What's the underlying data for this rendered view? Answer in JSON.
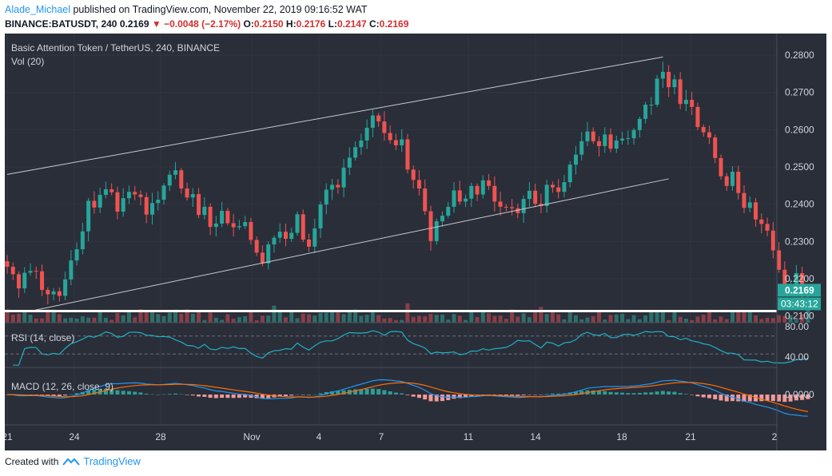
{
  "header": {
    "author": "Alade_Michael",
    "published": "published on TradingView.com, November 22, 2019 09:16:52 WAT",
    "symbol": "BINANCE:BATUSDT, 240",
    "last": "0.2169",
    "change_arrow": "▼",
    "change": "−0.0048 (−2.17%)",
    "o_label": "O:",
    "o": "0.2150",
    "h_label": "H:",
    "h": "0.2176",
    "l_label": "L:",
    "l": "0.2147",
    "c_label": "C:",
    "c": "0.2169"
  },
  "footer": {
    "created": "Created with",
    "brand": "TradingView"
  },
  "colors": {
    "background": "#2a2e39",
    "up": "#26a69a",
    "down": "#ef5350",
    "rsi": "#1fb1c4",
    "macd": "#2196f3",
    "signal": "#ff6d00"
  },
  "chart_data": {
    "type": "candlestick",
    "title": "Basic Attention Token / TetherUS, 240, BINANCE",
    "volume_label": "Vol (20)",
    "rsi_label": "RSI (14, close)",
    "macd_label": "MACD (12, 26, close, 9)",
    "price_ticks": [
      "0.2800",
      "0.2700",
      "0.2600",
      "0.2500",
      "0.2400",
      "0.2300",
      "0.2200",
      "0.2100"
    ],
    "rsi_ticks": [
      "80.00",
      "40.00"
    ],
    "macd_ticks": [
      "0.0000"
    ],
    "x_ticks": [
      "21",
      "24",
      "28",
      "Nov",
      "4",
      "7",
      "11",
      "14",
      "18",
      "21",
      "2"
    ],
    "last_price_tag": "0.2169",
    "countdown_tag": "03:43:12",
    "support_level": 0.2113,
    "channel_upper": [
      [
        0,
        0.248
      ],
      [
        113,
        0.2795
      ]
    ],
    "channel_lower": [
      [
        4,
        0.2113
      ],
      [
        114,
        0.2468
      ]
    ],
    "close_series": [
      0.2232,
      0.2212,
      0.2174,
      0.2216,
      0.2221,
      0.222,
      0.217,
      0.2158,
      0.2166,
      0.2154,
      0.2198,
      0.2249,
      0.2279,
      0.2327,
      0.2409,
      0.2391,
      0.2425,
      0.244,
      0.2432,
      0.238,
      0.2416,
      0.2433,
      0.2426,
      0.2419,
      0.2372,
      0.2403,
      0.2412,
      0.245,
      0.2479,
      0.2491,
      0.2442,
      0.2418,
      0.2427,
      0.2371,
      0.2393,
      0.2339,
      0.2348,
      0.2382,
      0.2349,
      0.2338,
      0.2341,
      0.2352,
      0.2304,
      0.227,
      0.2241,
      0.2292,
      0.231,
      0.2326,
      0.2307,
      0.2323,
      0.2373,
      0.2305,
      0.2286,
      0.2335,
      0.2399,
      0.2439,
      0.2452,
      0.2445,
      0.2498,
      0.2525,
      0.2553,
      0.2571,
      0.2605,
      0.2638,
      0.2622,
      0.2591,
      0.2572,
      0.2558,
      0.2574,
      0.2493,
      0.2465,
      0.2442,
      0.2381,
      0.2301,
      0.2354,
      0.2369,
      0.2393,
      0.2437,
      0.2407,
      0.2415,
      0.2449,
      0.2426,
      0.2464,
      0.2449,
      0.2407,
      0.2393,
      0.2392,
      0.2389,
      0.2376,
      0.2414,
      0.2436,
      0.2401,
      0.2395,
      0.2452,
      0.2445,
      0.2433,
      0.2459,
      0.2506,
      0.2533,
      0.2569,
      0.2595,
      0.2569,
      0.2556,
      0.2587,
      0.2549,
      0.2571,
      0.2576,
      0.2577,
      0.2599,
      0.2629,
      0.2667,
      0.2667,
      0.2737,
      0.2755,
      0.2714,
      0.2735,
      0.2669,
      0.268,
      0.2661,
      0.2607,
      0.2593,
      0.2579,
      0.2524,
      0.2475,
      0.2449,
      0.2487,
      0.243,
      0.239,
      0.2405,
      0.2359,
      0.2347,
      0.2329,
      0.2276,
      0.2224,
      0.217,
      0.2185,
      0.2215,
      0.216,
      0.2169
    ]
  }
}
